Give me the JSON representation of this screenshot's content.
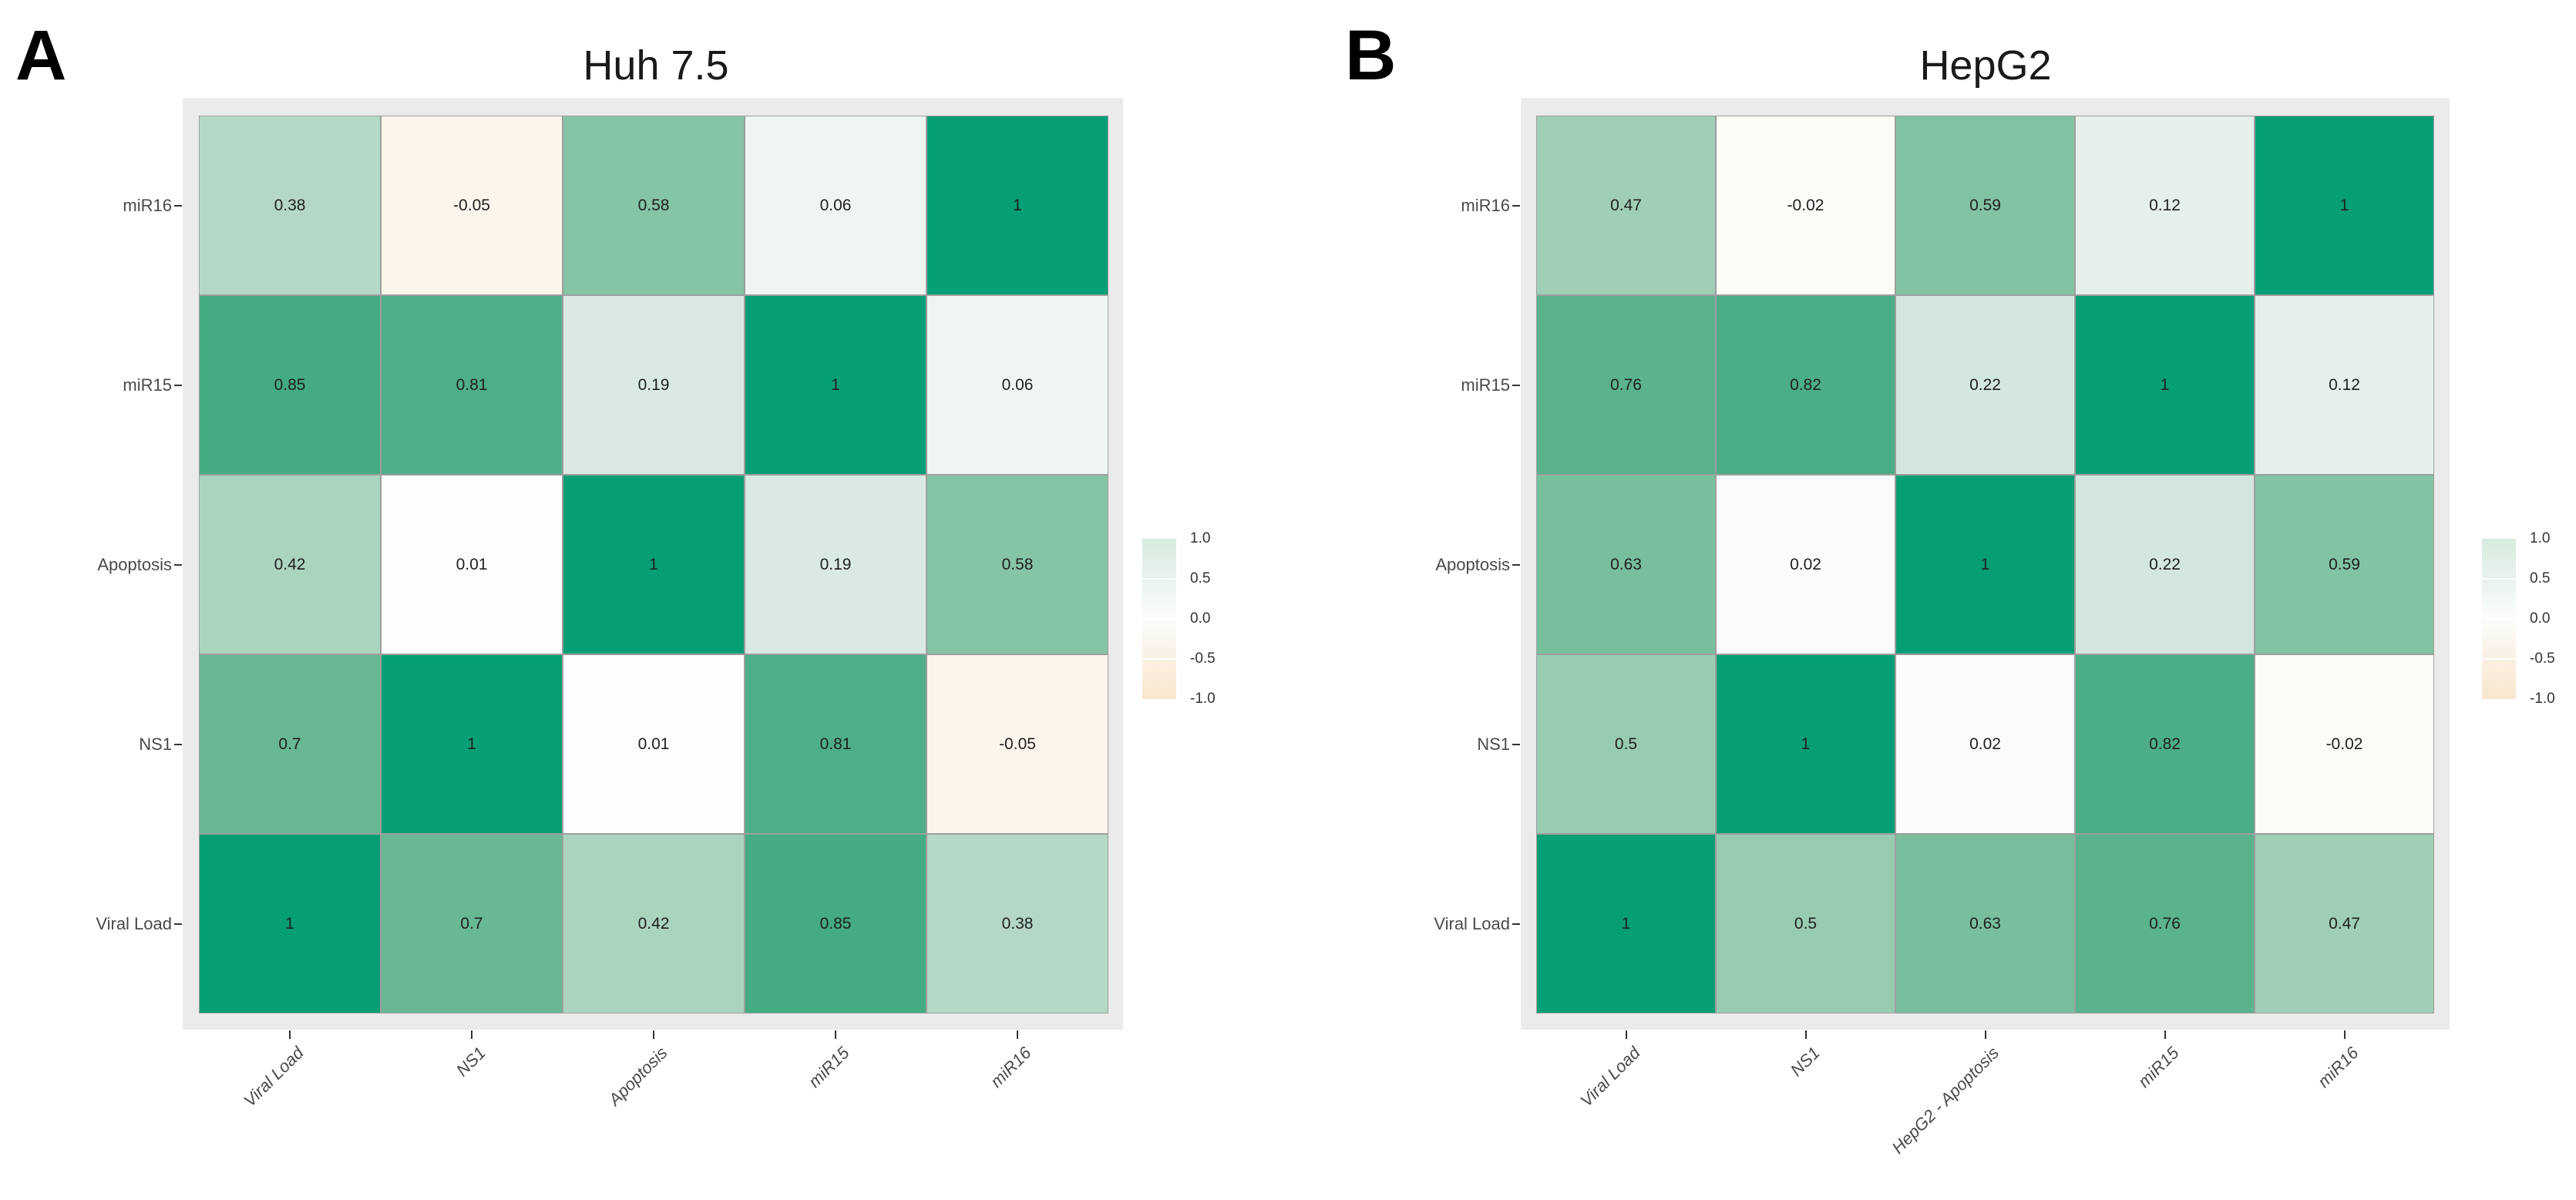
{
  "figure": {
    "background_color": "#FFFFFF",
    "panel_background_color": "#EBEBEB"
  },
  "chart_data": [
    {
      "type": "heatmap",
      "panel_label": "A",
      "title": "Huh 7.5",
      "x_categories": [
        "Viral Load",
        "NS1",
        "Apoptosis",
        "miR15",
        "miR16"
      ],
      "y_categories_top_to_bottom": [
        "miR16",
        "miR15",
        "Apoptosis",
        "NS1",
        "Viral Load"
      ],
      "rows_top_to_bottom": [
        [
          0.38,
          -0.05,
          0.58,
          0.06,
          1
        ],
        [
          0.85,
          0.81,
          0.19,
          1,
          0.06
        ],
        [
          0.42,
          0.01,
          1,
          0.19,
          0.58
        ],
        [
          0.7,
          1,
          0.01,
          0.81,
          -0.05
        ],
        [
          1,
          0.7,
          0.42,
          0.85,
          0.38
        ]
      ],
      "colorbar": {
        "tick_labels": [
          "1.0",
          "0.5",
          "0.0",
          "-0.5",
          "-1.0"
        ],
        "range": [
          -1,
          1
        ],
        "positive_end_color": "#069E74",
        "midpoint_color": "#FEFFFE",
        "negative_end_color": "#F6D7B0"
      },
      "legend_position": "right",
      "grid": "off"
    },
    {
      "type": "heatmap",
      "panel_label": "B",
      "title": "HepG2",
      "x_categories": [
        "Viral Load",
        "NS1",
        "HepG2 - Apoptosis",
        "miR15",
        "miR16"
      ],
      "y_categories_top_to_bottom": [
        "miR16",
        "miR15",
        "Apoptosis",
        "NS1",
        "Viral Load"
      ],
      "rows_top_to_bottom": [
        [
          0.47,
          -0.02,
          0.59,
          0.12,
          1
        ],
        [
          0.76,
          0.82,
          0.22,
          1,
          0.12
        ],
        [
          0.63,
          0.02,
          1,
          0.22,
          0.59
        ],
        [
          0.5,
          1,
          0.02,
          0.82,
          -0.02
        ],
        [
          1,
          0.5,
          0.63,
          0.76,
          0.47
        ]
      ],
      "colorbar": {
        "tick_labels": [
          "1.0",
          "0.5",
          "0.0",
          "-0.5",
          "-1.0"
        ],
        "range": [
          -1,
          1
        ],
        "positive_end_color": "#069E74",
        "midpoint_color": "#FEFFFE",
        "negative_end_color": "#F6D7B0"
      },
      "legend_position": "right",
      "grid": "off"
    }
  ]
}
